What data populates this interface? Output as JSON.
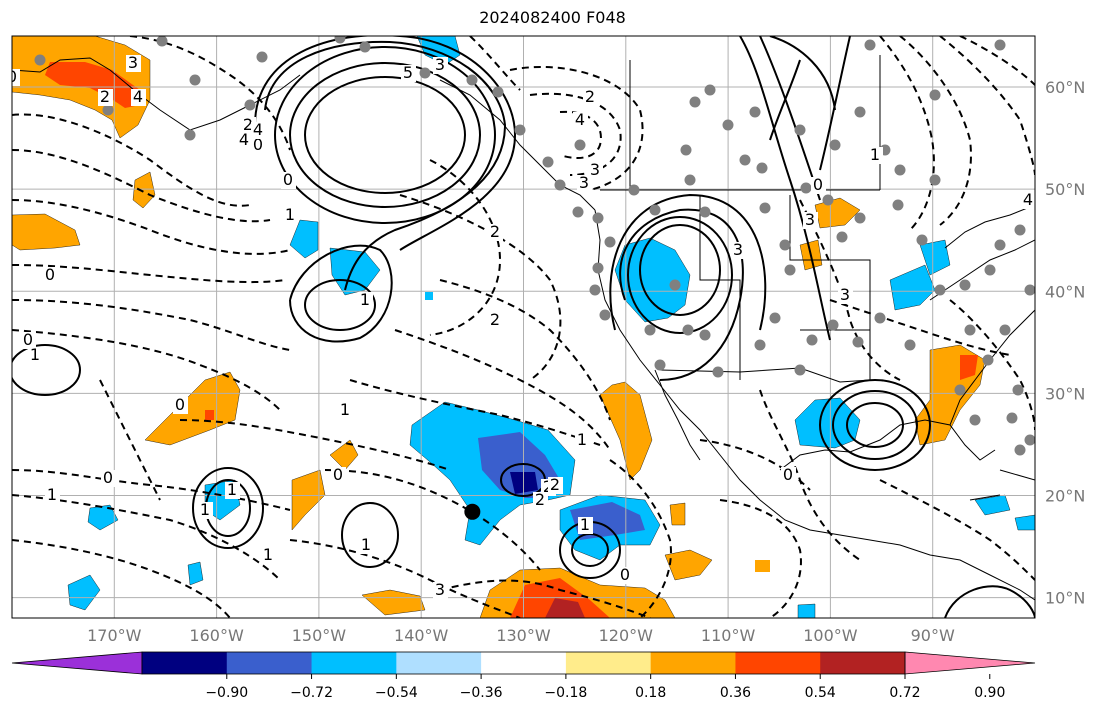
{
  "title": "2024082400 F048",
  "map": {
    "extent": {
      "lon_min": -180,
      "lon_max": -80,
      "lat_min": 8,
      "lat_max": 65
    },
    "lat_labels": [
      {
        "lat": 60,
        "text": "60°N"
      },
      {
        "lat": 50,
        "text": "50°N"
      },
      {
        "lat": 40,
        "text": "40°N"
      },
      {
        "lat": 30,
        "text": "30°N"
      },
      {
        "lat": 20,
        "text": "20°N"
      },
      {
        "lat": 10,
        "text": "10°N"
      }
    ],
    "lon_labels": [
      {
        "lon": -170,
        "text": "170°W"
      },
      {
        "lon": -160,
        "text": "160°W"
      },
      {
        "lon": -150,
        "text": "150°W"
      },
      {
        "lon": -140,
        "text": "140°W"
      },
      {
        "lon": -130,
        "text": "130°W"
      },
      {
        "lon": -120,
        "text": "120°W"
      },
      {
        "lon": -110,
        "text": "110°W"
      },
      {
        "lon": -100,
        "text": "100°W"
      },
      {
        "lon": -90,
        "text": "90°W"
      }
    ],
    "contour_labels": [
      "0",
      "3",
      "2",
      "4",
      "5",
      "3",
      "4",
      "2",
      "0",
      "2",
      "1",
      "0",
      "3",
      "1",
      "0",
      "4",
      "3",
      "2",
      "2",
      "1",
      "3",
      "3",
      "4",
      "1",
      "0",
      "3",
      "4",
      "0",
      "1",
      "0",
      "1",
      "1",
      "0",
      "2",
      "1",
      "2",
      "1",
      "1",
      "0",
      "0",
      "1",
      "2",
      "3",
      "1",
      "0"
    ],
    "marker": {
      "lon": -135,
      "lat": 18.4
    }
  },
  "colorbar": {
    "colors": [
      "#9b30d9",
      "#000080",
      "#3a5fcd",
      "#00bfff",
      "#afdfff",
      "#ffffff",
      "#ffec8b",
      "#ffa500",
      "#ff4500",
      "#b22222",
      "#ff88b0"
    ],
    "tick_labels": [
      "−0.90",
      "−0.72",
      "−0.54",
      "−0.36",
      "−0.18",
      "0.18",
      "0.36",
      "0.54",
      "0.72",
      "0.90"
    ]
  }
}
